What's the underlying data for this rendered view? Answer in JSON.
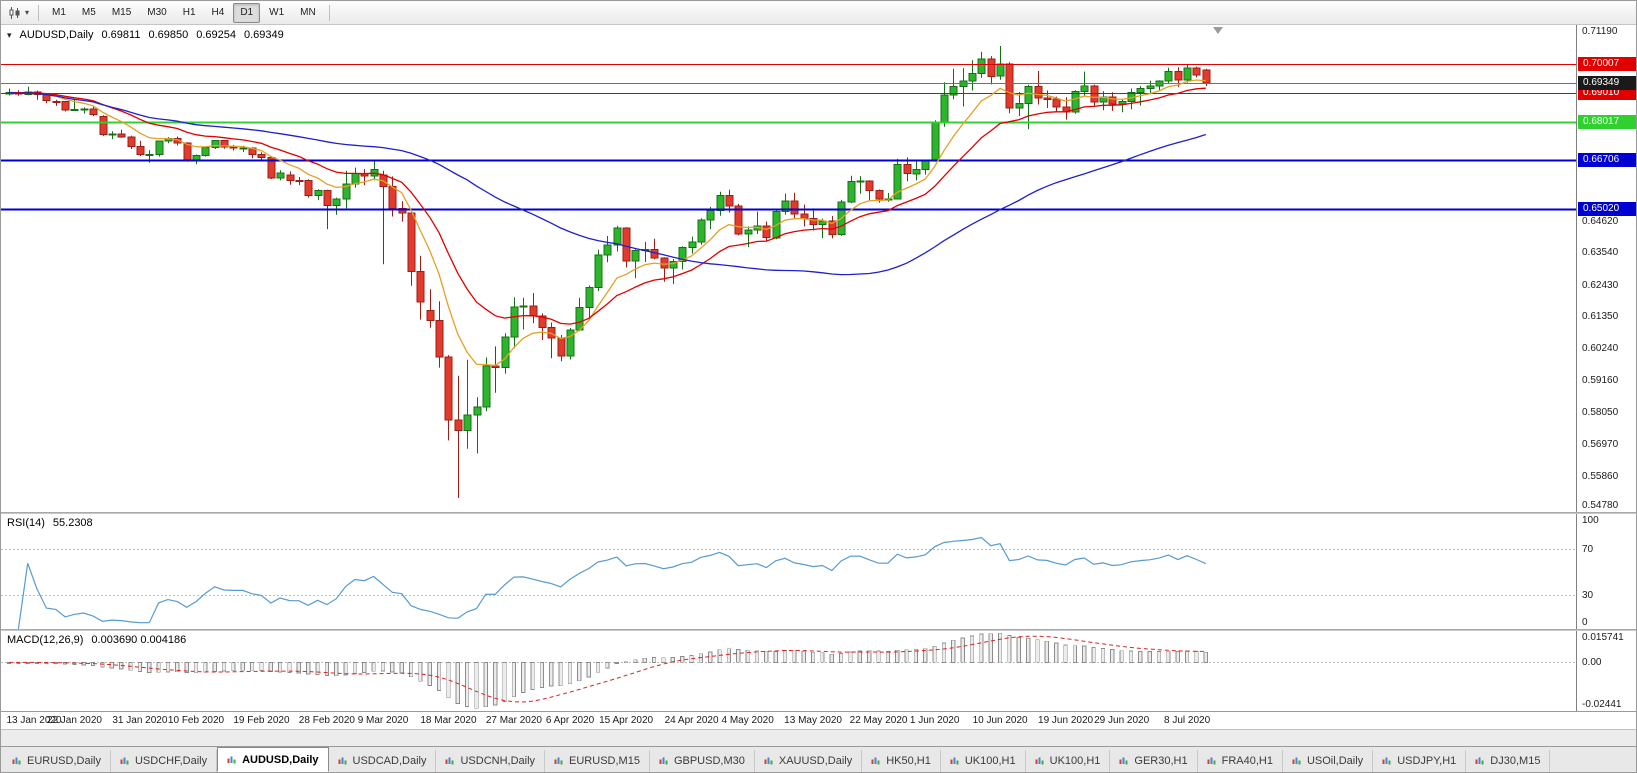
{
  "toolbar": {
    "timeframes": [
      "M1",
      "M5",
      "M15",
      "M30",
      "H1",
      "H4",
      "D1",
      "W1",
      "MN"
    ],
    "active_timeframe": "D1"
  },
  "chart_header": {
    "symbol": "AUDUSD,Daily",
    "open": "0.69811",
    "high": "0.69850",
    "low": "0.69254",
    "close": "0.69349"
  },
  "colors": {
    "bull_fill": "#2eb52e",
    "bull_stroke": "#157015",
    "bear_fill": "#e23b2e",
    "bear_stroke": "#9c1f16",
    "current_badge": "#1a1a1a",
    "bid_line": "#707070",
    "axis_text": "#1a1a1a"
  },
  "chart_data": {
    "type": "candlestick",
    "symbol": "AUDUSD",
    "timeframe": "Daily",
    "main": {
      "ymin": 0.5462,
      "ymax": 0.7135,
      "ticks": [
        0.7119,
        0.6462,
        0.6354,
        0.6243,
        0.6135,
        0.6024,
        0.5916,
        0.5805,
        0.5697,
        0.5586,
        0.5478
      ],
      "hlines": [
        {
          "value": 0.70007,
          "color": "#e00000",
          "width": 1
        },
        {
          "value": 0.6901,
          "color": "#e00000",
          "width": 1
        },
        {
          "value": 0.68017,
          "color": "#2fd12f",
          "width": 2
        },
        {
          "value": 0.66706,
          "color": "#0000d2",
          "width": 2
        },
        {
          "value": 0.6502,
          "color": "#0000d2",
          "width": 2
        }
      ],
      "current": {
        "value": 0.69349
      },
      "mas": [
        {
          "period": 8,
          "type": "ema",
          "color": "#e6a023"
        },
        {
          "period": 17,
          "type": "ema",
          "color": "#e00000"
        },
        {
          "period": 50,
          "type": "sma",
          "color": "#1f1fd0"
        }
      ]
    },
    "candles": [
      [
        0.6898,
        0.6917,
        0.6893,
        0.6903
      ],
      [
        0.6903,
        0.6911,
        0.6892,
        0.6897
      ],
      [
        0.6897,
        0.6923,
        0.6894,
        0.6905
      ],
      [
        0.6905,
        0.691,
        0.6878,
        0.6896
      ],
      [
        0.6896,
        0.69,
        0.6866,
        0.6875
      ],
      [
        0.6873,
        0.6878,
        0.6857,
        0.6872
      ],
      [
        0.6872,
        0.6874,
        0.6838,
        0.6843
      ],
      [
        0.6843,
        0.6878,
        0.684,
        0.6845
      ],
      [
        0.6845,
        0.6852,
        0.6831,
        0.6846
      ],
      [
        0.6846,
        0.6856,
        0.6822,
        0.6827
      ],
      [
        0.682,
        0.6825,
        0.6754,
        0.6759
      ],
      [
        0.6759,
        0.677,
        0.6743,
        0.6761
      ],
      [
        0.6761,
        0.6775,
        0.6748,
        0.6751
      ],
      [
        0.6751,
        0.6755,
        0.6709,
        0.6718
      ],
      [
        0.6718,
        0.6737,
        0.6685,
        0.669
      ],
      [
        0.669,
        0.6705,
        0.6662,
        0.669
      ],
      [
        0.669,
        0.6737,
        0.6683,
        0.6736
      ],
      [
        0.6736,
        0.675,
        0.6729,
        0.6745
      ],
      [
        0.6745,
        0.6752,
        0.6721,
        0.6729
      ],
      [
        0.6729,
        0.6732,
        0.6665,
        0.667
      ],
      [
        0.6667,
        0.669,
        0.6657,
        0.6687
      ],
      [
        0.6687,
        0.6718,
        0.6683,
        0.6714
      ],
      [
        0.6714,
        0.674,
        0.6709,
        0.6738
      ],
      [
        0.6738,
        0.674,
        0.671,
        0.6716
      ],
      [
        0.6716,
        0.6723,
        0.6704,
        0.6713
      ],
      [
        0.6713,
        0.672,
        0.6699,
        0.6713
      ],
      [
        0.6713,
        0.6715,
        0.6677,
        0.669
      ],
      [
        0.669,
        0.6698,
        0.6666,
        0.6679
      ],
      [
        0.6679,
        0.668,
        0.6606,
        0.661
      ],
      [
        0.661,
        0.6636,
        0.6601,
        0.6627
      ],
      [
        0.662,
        0.6632,
        0.6586,
        0.6601
      ],
      [
        0.6601,
        0.6613,
        0.6585,
        0.66
      ],
      [
        0.66,
        0.6605,
        0.6542,
        0.6549
      ],
      [
        0.6549,
        0.6571,
        0.6534,
        0.6566
      ],
      [
        0.6566,
        0.6569,
        0.6434,
        0.6515
      ],
      [
        0.6515,
        0.6542,
        0.6483,
        0.6537
      ],
      [
        0.6537,
        0.6634,
        0.6505,
        0.6589
      ],
      [
        0.6589,
        0.6645,
        0.6576,
        0.6625
      ],
      [
        0.6625,
        0.664,
        0.6585,
        0.6617
      ],
      [
        0.6617,
        0.6669,
        0.6602,
        0.6639
      ],
      [
        0.662,
        0.6634,
        0.6313,
        0.6581
      ],
      [
        0.6581,
        0.6615,
        0.6477,
        0.6504
      ],
      [
        0.6504,
        0.653,
        0.646,
        0.6489
      ],
      [
        0.6489,
        0.6494,
        0.6239,
        0.6288
      ],
      [
        0.6288,
        0.6342,
        0.6123,
        0.6184
      ],
      [
        0.6155,
        0.6227,
        0.6095,
        0.612
      ],
      [
        0.612,
        0.6186,
        0.5958,
        0.5994
      ],
      [
        0.5994,
        0.6001,
        0.5708,
        0.5778
      ],
      [
        0.5778,
        0.593,
        0.551,
        0.5742
      ],
      [
        0.5742,
        0.5985,
        0.5679,
        0.5795
      ],
      [
        0.5795,
        0.5856,
        0.5663,
        0.5823
      ],
      [
        0.5823,
        0.5993,
        0.5808,
        0.5963
      ],
      [
        0.5963,
        0.6031,
        0.5872,
        0.5958
      ],
      [
        0.5958,
        0.6076,
        0.5937,
        0.6063
      ],
      [
        0.6063,
        0.62,
        0.6025,
        0.6167
      ],
      [
        0.6167,
        0.6198,
        0.6089,
        0.617
      ],
      [
        0.617,
        0.6214,
        0.6111,
        0.6135
      ],
      [
        0.6135,
        0.6144,
        0.6053,
        0.6095
      ],
      [
        0.6095,
        0.6113,
        0.599,
        0.606
      ],
      [
        0.606,
        0.607,
        0.598,
        0.5998
      ],
      [
        0.5998,
        0.6094,
        0.5986,
        0.6087
      ],
      [
        0.6087,
        0.6198,
        0.6083,
        0.6165
      ],
      [
        0.6165,
        0.624,
        0.6128,
        0.6234
      ],
      [
        0.6234,
        0.6363,
        0.6221,
        0.6345
      ],
      [
        0.6345,
        0.641,
        0.632,
        0.638
      ],
      [
        0.638,
        0.6445,
        0.6357,
        0.6437
      ],
      [
        0.6437,
        0.644,
        0.6302,
        0.6325
      ],
      [
        0.6325,
        0.6364,
        0.6265,
        0.636
      ],
      [
        0.636,
        0.639,
        0.6321,
        0.6364
      ],
      [
        0.6364,
        0.6401,
        0.633,
        0.6335
      ],
      [
        0.6335,
        0.6337,
        0.6253,
        0.63
      ],
      [
        0.63,
        0.6331,
        0.6245,
        0.6323
      ],
      [
        0.6323,
        0.6375,
        0.6295,
        0.637
      ],
      [
        0.637,
        0.6408,
        0.635,
        0.639
      ],
      [
        0.639,
        0.6471,
        0.638,
        0.6465
      ],
      [
        0.6465,
        0.651,
        0.6434,
        0.6497
      ],
      [
        0.6497,
        0.6562,
        0.648,
        0.6549
      ],
      [
        0.6549,
        0.6569,
        0.6491,
        0.6513
      ],
      [
        0.6513,
        0.6521,
        0.6413,
        0.6417
      ],
      [
        0.6417,
        0.6443,
        0.6372,
        0.643
      ],
      [
        0.643,
        0.6494,
        0.6417,
        0.6444
      ],
      [
        0.6444,
        0.646,
        0.6391,
        0.6404
      ],
      [
        0.6404,
        0.65,
        0.6399,
        0.6494
      ],
      [
        0.6494,
        0.6556,
        0.6483,
        0.653
      ],
      [
        0.653,
        0.6559,
        0.6468,
        0.6486
      ],
      [
        0.6486,
        0.6518,
        0.6443,
        0.647
      ],
      [
        0.647,
        0.6505,
        0.6429,
        0.645
      ],
      [
        0.645,
        0.647,
        0.6403,
        0.6462
      ],
      [
        0.6462,
        0.6479,
        0.6402,
        0.6415
      ],
      [
        0.6415,
        0.6534,
        0.6411,
        0.6527
      ],
      [
        0.6527,
        0.6617,
        0.6523,
        0.6598
      ],
      [
        0.6598,
        0.6616,
        0.6555,
        0.6599
      ],
      [
        0.6599,
        0.6602,
        0.6534,
        0.6567
      ],
      [
        0.6567,
        0.657,
        0.6525,
        0.6537
      ],
      [
        0.6537,
        0.6558,
        0.6528,
        0.6538
      ],
      [
        0.6538,
        0.6675,
        0.6537,
        0.6655
      ],
      [
        0.6655,
        0.668,
        0.6598,
        0.6624
      ],
      [
        0.6624,
        0.6666,
        0.6601,
        0.6638
      ],
      [
        0.6638,
        0.6672,
        0.6621,
        0.6667
      ],
      [
        0.6667,
        0.6808,
        0.6665,
        0.6798
      ],
      [
        0.6798,
        0.6938,
        0.6785,
        0.6894
      ],
      [
        0.6894,
        0.6985,
        0.688,
        0.6923
      ],
      [
        0.6923,
        0.6987,
        0.6855,
        0.6942
      ],
      [
        0.6942,
        0.7014,
        0.691,
        0.6968
      ],
      [
        0.6968,
        0.7043,
        0.6954,
        0.7019
      ],
      [
        0.7019,
        0.7028,
        0.6931,
        0.6959
      ],
      [
        0.6959,
        0.7063,
        0.6947,
        0.7001
      ],
      [
        0.7001,
        0.7007,
        0.6832,
        0.685
      ],
      [
        0.685,
        0.6905,
        0.6822,
        0.6866
      ],
      [
        0.6866,
        0.693,
        0.6777,
        0.6923
      ],
      [
        0.6923,
        0.6977,
        0.6862,
        0.6885
      ],
      [
        0.6885,
        0.691,
        0.685,
        0.688
      ],
      [
        0.688,
        0.6889,
        0.6838,
        0.6853
      ],
      [
        0.6853,
        0.6887,
        0.681,
        0.6836
      ],
      [
        0.6836,
        0.6911,
        0.683,
        0.6906
      ],
      [
        0.6906,
        0.6975,
        0.6892,
        0.6926
      ],
      [
        0.6926,
        0.693,
        0.6855,
        0.6871
      ],
      [
        0.6871,
        0.6908,
        0.6842,
        0.6887
      ],
      [
        0.6887,
        0.6904,
        0.684,
        0.6864
      ],
      [
        0.6864,
        0.6879,
        0.6835,
        0.6872
      ],
      [
        0.6872,
        0.6917,
        0.6845,
        0.6903
      ],
      [
        0.6903,
        0.6925,
        0.6858,
        0.6916
      ],
      [
        0.6916,
        0.6944,
        0.6901,
        0.6925
      ],
      [
        0.6925,
        0.6945,
        0.6911,
        0.6942
      ],
      [
        0.6942,
        0.6988,
        0.6934,
        0.6975
      ],
      [
        0.6975,
        0.699,
        0.6921,
        0.6946
      ],
      [
        0.6946,
        0.6999,
        0.6937,
        0.6987
      ],
      [
        0.6987,
        0.6992,
        0.6955,
        0.6963
      ],
      [
        0.69811,
        0.6985,
        0.69254,
        0.69349
      ]
    ],
    "x_labels": [
      {
        "i": 0,
        "t": "13 Jan 2020"
      },
      {
        "i": 7,
        "t": "22 Jan 2020"
      },
      {
        "i": 14,
        "t": "31 Jan 2020"
      },
      {
        "i": 20,
        "t": "10 Feb 2020"
      },
      {
        "i": 27,
        "t": "19 Feb 2020"
      },
      {
        "i": 34,
        "t": "28 Feb 2020"
      },
      {
        "i": 40,
        "t": "9 Mar 2020"
      },
      {
        "i": 47,
        "t": "18 Mar 2020"
      },
      {
        "i": 54,
        "t": "27 Mar 2020"
      },
      {
        "i": 60,
        "t": "6 Apr 2020"
      },
      {
        "i": 66,
        "t": "15 Apr 2020"
      },
      {
        "i": 73,
        "t": "24 Apr 2020"
      },
      {
        "i": 79,
        "t": "4 May 2020"
      },
      {
        "i": 86,
        "t": "13 May 2020"
      },
      {
        "i": 93,
        "t": "22 May 2020"
      },
      {
        "i": 99,
        "t": "1 Jun 2020"
      },
      {
        "i": 106,
        "t": "10 Jun 2020"
      },
      {
        "i": 113,
        "t": "19 Jun 2020"
      },
      {
        "i": 119,
        "t": "29 Jun 2020"
      },
      {
        "i": 126,
        "t": "8 Jul 2020"
      }
    ],
    "rsi": {
      "label": "RSI(14)",
      "value": "55.2308",
      "period": 14,
      "levels": [
        70,
        30
      ],
      "axis": [
        100,
        70,
        30,
        0
      ],
      "color": "#569bd2"
    },
    "macd": {
      "label": "MACD(12,26,9)",
      "values": "0.003690 0.004186",
      "fast": 12,
      "slow": 26,
      "signal": 9,
      "ymin": -0.02441,
      "ymax": 0.015741,
      "axis": [
        {
          "v": 0.015741,
          "t": "0.015741"
        },
        {
          "v": 0,
          "t": "0.00"
        },
        {
          "v": -0.02441,
          "t": "-0.02441"
        }
      ],
      "histogram_color": "#8c8c8c",
      "signal_color": "#dd2222"
    }
  },
  "tabs": {
    "items": [
      {
        "label": "EURUSD,Daily"
      },
      {
        "label": "USDCHF,Daily"
      },
      {
        "label": "AUDUSD,Daily",
        "active": true
      },
      {
        "label": "USDCAD,Daily"
      },
      {
        "label": "USDCNH,Daily"
      },
      {
        "label": "EURUSD,M15"
      },
      {
        "label": "GBPUSD,M30"
      },
      {
        "label": "XAUUSD,Daily"
      },
      {
        "label": "HK50,H1"
      },
      {
        "label": "UK100,H1"
      },
      {
        "label": "UK100,H1"
      },
      {
        "label": "GER30,H1"
      },
      {
        "label": "FRA40,H1"
      },
      {
        "label": "USOil,Daily"
      },
      {
        "label": "USDJPY,H1"
      },
      {
        "label": "DJ30,M15"
      }
    ]
  }
}
